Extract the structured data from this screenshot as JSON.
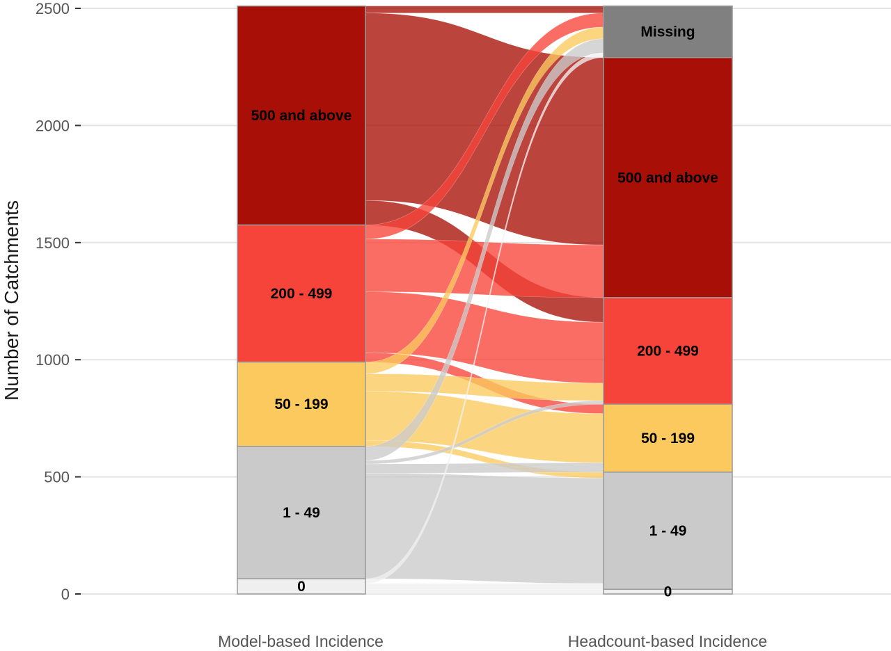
{
  "chart_data": {
    "type": "alluvial",
    "ylabel": "Number of Catchments",
    "ylim": [
      0,
      2500
    ],
    "y_ticks": [
      0,
      500,
      1000,
      1500,
      2000,
      2500
    ],
    "grid": true,
    "axes": [
      {
        "label": "Model-based Incidence",
        "strata": [
          {
            "name": "500 and above",
            "value": 935
          },
          {
            "name": "200 - 499",
            "value": 585
          },
          {
            "name": "50 - 199",
            "value": 360
          },
          {
            "name": "1 - 49",
            "value": 565
          },
          {
            "name": "0",
            "value": 65
          }
        ]
      },
      {
        "label": "Headcount-based Incidence",
        "strata": [
          {
            "name": "Missing",
            "value": 220
          },
          {
            "name": "500 and above",
            "value": 1025
          },
          {
            "name": "200 - 499",
            "value": 455
          },
          {
            "name": "50 - 199",
            "value": 290
          },
          {
            "name": "1 - 49",
            "value": 500
          },
          {
            "name": "0",
            "value": 20
          }
        ]
      }
    ],
    "stratum_colors": {
      "Missing": "#808080",
      "500 and above": "#a80f06",
      "200 - 499": "#f7443a",
      "50 - 199": "#fbc95d",
      "1 - 49": "#cacaca",
      "0": "#efefef"
    },
    "flows": [
      {
        "from": "500 and above",
        "to": "Missing",
        "value": 30
      },
      {
        "from": "500 and above",
        "to": "500 and above",
        "value": 800
      },
      {
        "from": "500 and above",
        "to": "200 - 499",
        "value": 105
      },
      {
        "from": "200 - 499",
        "to": "Missing",
        "value": 60
      },
      {
        "from": "200 - 499",
        "to": "500 and above",
        "value": 225
      },
      {
        "from": "200 - 499",
        "to": "200 - 499",
        "value": 260
      },
      {
        "from": "200 - 499",
        "to": "50 - 199",
        "value": 40
      },
      {
        "from": "50 - 199",
        "to": "Missing",
        "value": 50
      },
      {
        "from": "50 - 199",
        "to": "200 - 499",
        "value": 75
      },
      {
        "from": "50 - 199",
        "to": "50 - 199",
        "value": 210
      },
      {
        "from": "50 - 199",
        "to": "1 - 49",
        "value": 25
      },
      {
        "from": "1 - 49",
        "to": "Missing",
        "value": 60
      },
      {
        "from": "1 - 49",
        "to": "200 - 499",
        "value": 15
      },
      {
        "from": "1 - 49",
        "to": "50 - 199",
        "value": 40
      },
      {
        "from": "1 - 49",
        "to": "1 - 49",
        "value": 450
      },
      {
        "from": "0",
        "to": "Missing",
        "value": 20
      },
      {
        "from": "0",
        "to": "1 - 49",
        "value": 25
      },
      {
        "from": "0",
        "to": "0",
        "value": 20
      }
    ]
  }
}
